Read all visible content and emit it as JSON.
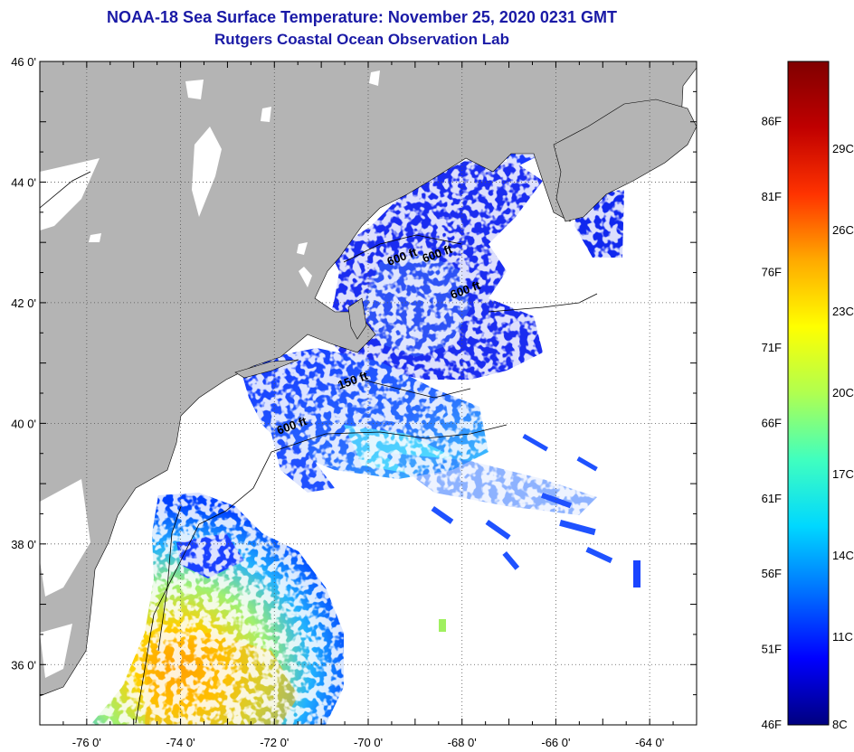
{
  "header": {
    "title": "NOAA-18 Sea Surface Temperature:  November 25, 2020 0231 GMT",
    "subtitle": "Rutgers Coastal Ocean Observation Lab"
  },
  "map": {
    "lon_range": [
      -77,
      -63
    ],
    "lat_range": [
      35,
      46
    ],
    "lat_ticks": [
      {
        "value": 46,
        "label": "46 0'"
      },
      {
        "value": 44,
        "label": "44 0'"
      },
      {
        "value": 42,
        "label": "42 0'"
      },
      {
        "value": 40,
        "label": "40 0'"
      },
      {
        "value": 38,
        "label": "38 0'"
      },
      {
        "value": 36,
        "label": "36 0'"
      }
    ],
    "lon_ticks": [
      {
        "value": -76,
        "label": "-76 0'"
      },
      {
        "value": -74,
        "label": "-74 0'"
      },
      {
        "value": -72,
        "label": "-72 0'"
      },
      {
        "value": -70,
        "label": "-70 0'"
      },
      {
        "value": -68,
        "label": "-68 0'"
      },
      {
        "value": -66,
        "label": "-66 0'"
      },
      {
        "value": -64,
        "label": "-64 0'"
      }
    ],
    "land_color": "#b4b4b4",
    "no_data_color": "#ffffff",
    "depth_labels": [
      {
        "text": "600 ft",
        "lon": -68.5,
        "lat": 42.75
      },
      {
        "text": "600 ft",
        "lon": -69.25,
        "lat": 42.7
      },
      {
        "text": "600 ft",
        "lon": -67.9,
        "lat": 42.15
      },
      {
        "text": "150 ft",
        "lon": -70.3,
        "lat": 40.65
      },
      {
        "text": "600 ft",
        "lon": -71.6,
        "lat": 39.9
      }
    ]
  },
  "legend": {
    "fahrenheit_labels": [
      "86F",
      "81F",
      "76F",
      "71F",
      "66F",
      "61F",
      "56F",
      "51F",
      "46F"
    ],
    "celsius_labels": [
      "29C",
      "26C",
      "23C",
      "20C",
      "17C",
      "14C",
      "11C",
      "8C"
    ],
    "colors": [
      "#00007f",
      "#0000ff",
      "#0070ff",
      "#00d8ff",
      "#40ffbf",
      "#b0ff50",
      "#ffff00",
      "#ffaa00",
      "#ff3300",
      "#c00000",
      "#800000"
    ]
  }
}
